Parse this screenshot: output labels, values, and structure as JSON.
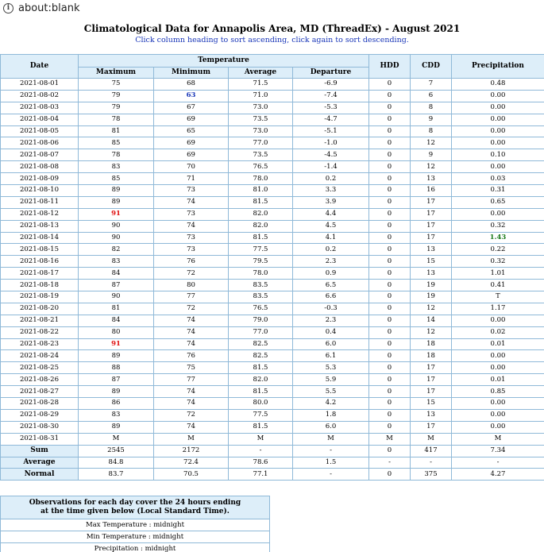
{
  "browser": {
    "url": "about:blank"
  },
  "page": {
    "title": "Climatological Data for Annapolis Area, MD (ThreadEx) - August 2021",
    "subtitle": "Click column heading to sort ascending, click again to sort descending."
  },
  "table": {
    "headers": {
      "date": "Date",
      "temperature": "Temperature",
      "maximum": "Maximum",
      "minimum": "Minimum",
      "average": "Average",
      "departure": "Departure",
      "hdd": "HDD",
      "cdd": "CDD",
      "precipitation": "Precipitation"
    },
    "rows": [
      {
        "date": "2021-08-01",
        "max": "75",
        "min": "68",
        "avg": "71.5",
        "dep": "-6.9",
        "hdd": "0",
        "cdd": "7",
        "precip": "0.48"
      },
      {
        "date": "2021-08-02",
        "max": "79",
        "min": "63",
        "avg": "71.0",
        "dep": "-7.4",
        "hdd": "0",
        "cdd": "6",
        "precip": "0.00"
      },
      {
        "date": "2021-08-03",
        "max": "79",
        "min": "67",
        "avg": "73.0",
        "dep": "-5.3",
        "hdd": "0",
        "cdd": "8",
        "precip": "0.00"
      },
      {
        "date": "2021-08-04",
        "max": "78",
        "min": "69",
        "avg": "73.5",
        "dep": "-4.7",
        "hdd": "0",
        "cdd": "9",
        "precip": "0.00"
      },
      {
        "date": "2021-08-05",
        "max": "81",
        "min": "65",
        "avg": "73.0",
        "dep": "-5.1",
        "hdd": "0",
        "cdd": "8",
        "precip": "0.00"
      },
      {
        "date": "2021-08-06",
        "max": "85",
        "min": "69",
        "avg": "77.0",
        "dep": "-1.0",
        "hdd": "0",
        "cdd": "12",
        "precip": "0.00"
      },
      {
        "date": "2021-08-07",
        "max": "78",
        "min": "69",
        "avg": "73.5",
        "dep": "-4.5",
        "hdd": "0",
        "cdd": "9",
        "precip": "0.10"
      },
      {
        "date": "2021-08-08",
        "max": "83",
        "min": "70",
        "avg": "76.5",
        "dep": "-1.4",
        "hdd": "0",
        "cdd": "12",
        "precip": "0.00"
      },
      {
        "date": "2021-08-09",
        "max": "85",
        "min": "71",
        "avg": "78.0",
        "dep": "0.2",
        "hdd": "0",
        "cdd": "13",
        "precip": "0.03"
      },
      {
        "date": "2021-08-10",
        "max": "89",
        "min": "73",
        "avg": "81.0",
        "dep": "3.3",
        "hdd": "0",
        "cdd": "16",
        "precip": "0.31"
      },
      {
        "date": "2021-08-11",
        "max": "89",
        "min": "74",
        "avg": "81.5",
        "dep": "3.9",
        "hdd": "0",
        "cdd": "17",
        "precip": "0.65"
      },
      {
        "date": "2021-08-12",
        "max": "91",
        "min": "73",
        "avg": "82.0",
        "dep": "4.4",
        "hdd": "0",
        "cdd": "17",
        "precip": "0.00"
      },
      {
        "date": "2021-08-13",
        "max": "90",
        "min": "74",
        "avg": "82.0",
        "dep": "4.5",
        "hdd": "0",
        "cdd": "17",
        "precip": "0.32"
      },
      {
        "date": "2021-08-14",
        "max": "90",
        "min": "73",
        "avg": "81.5",
        "dep": "4.1",
        "hdd": "0",
        "cdd": "17",
        "precip": "1.43"
      },
      {
        "date": "2021-08-15",
        "max": "82",
        "min": "73",
        "avg": "77.5",
        "dep": "0.2",
        "hdd": "0",
        "cdd": "13",
        "precip": "0.22"
      },
      {
        "date": "2021-08-16",
        "max": "83",
        "min": "76",
        "avg": "79.5",
        "dep": "2.3",
        "hdd": "0",
        "cdd": "15",
        "precip": "0.32"
      },
      {
        "date": "2021-08-17",
        "max": "84",
        "min": "72",
        "avg": "78.0",
        "dep": "0.9",
        "hdd": "0",
        "cdd": "13",
        "precip": "1.01"
      },
      {
        "date": "2021-08-18",
        "max": "87",
        "min": "80",
        "avg": "83.5",
        "dep": "6.5",
        "hdd": "0",
        "cdd": "19",
        "precip": "0.41"
      },
      {
        "date": "2021-08-19",
        "max": "90",
        "min": "77",
        "avg": "83.5",
        "dep": "6.6",
        "hdd": "0",
        "cdd": "19",
        "precip": "T"
      },
      {
        "date": "2021-08-20",
        "max": "81",
        "min": "72",
        "avg": "76.5",
        "dep": "-0.3",
        "hdd": "0",
        "cdd": "12",
        "precip": "1.17"
      },
      {
        "date": "2021-08-21",
        "max": "84",
        "min": "74",
        "avg": "79.0",
        "dep": "2.3",
        "hdd": "0",
        "cdd": "14",
        "precip": "0.00"
      },
      {
        "date": "2021-08-22",
        "max": "80",
        "min": "74",
        "avg": "77.0",
        "dep": "0.4",
        "hdd": "0",
        "cdd": "12",
        "precip": "0.02"
      },
      {
        "date": "2021-08-23",
        "max": "91",
        "min": "74",
        "avg": "82.5",
        "dep": "6.0",
        "hdd": "0",
        "cdd": "18",
        "precip": "0.01"
      },
      {
        "date": "2021-08-24",
        "max": "89",
        "min": "76",
        "avg": "82.5",
        "dep": "6.1",
        "hdd": "0",
        "cdd": "18",
        "precip": "0.00"
      },
      {
        "date": "2021-08-25",
        "max": "88",
        "min": "75",
        "avg": "81.5",
        "dep": "5.3",
        "hdd": "0",
        "cdd": "17",
        "precip": "0.00"
      },
      {
        "date": "2021-08-26",
        "max": "87",
        "min": "77",
        "avg": "82.0",
        "dep": "5.9",
        "hdd": "0",
        "cdd": "17",
        "precip": "0.01"
      },
      {
        "date": "2021-08-27",
        "max": "89",
        "min": "74",
        "avg": "81.5",
        "dep": "5.5",
        "hdd": "0",
        "cdd": "17",
        "precip": "0.85"
      },
      {
        "date": "2021-08-28",
        "max": "86",
        "min": "74",
        "avg": "80.0",
        "dep": "4.2",
        "hdd": "0",
        "cdd": "15",
        "precip": "0.00"
      },
      {
        "date": "2021-08-29",
        "max": "83",
        "min": "72",
        "avg": "77.5",
        "dep": "1.8",
        "hdd": "0",
        "cdd": "13",
        "precip": "0.00"
      },
      {
        "date": "2021-08-30",
        "max": "89",
        "min": "74",
        "avg": "81.5",
        "dep": "6.0",
        "hdd": "0",
        "cdd": "17",
        "precip": "0.00"
      },
      {
        "date": "2021-08-31",
        "max": "M",
        "min": "M",
        "avg": "M",
        "dep": "M",
        "hdd": "M",
        "cdd": "M",
        "precip": "M"
      }
    ],
    "summary": [
      {
        "label": "Sum",
        "max": "2545",
        "min": "2172",
        "avg": "-",
        "dep": "-",
        "hdd": "0",
        "cdd": "417",
        "precip": "7.34"
      },
      {
        "label": "Average",
        "max": "84.8",
        "min": "72.4",
        "avg": "78.6",
        "dep": "1.5",
        "hdd": "-",
        "cdd": "-",
        "precip": "-"
      },
      {
        "label": "Normal",
        "max": "83.7",
        "min": "70.5",
        "avg": "77.1",
        "dep": "-",
        "hdd": "0",
        "cdd": "375",
        "precip": "4.27"
      }
    ],
    "highlights": {
      "red_max": [
        "2021-08-12",
        "2021-08-23"
      ],
      "blue_min": [
        "2021-08-02"
      ],
      "green_precip": [
        "2021-08-14"
      ]
    },
    "colors": {
      "red": "#e01010",
      "blue": "#1a37b8",
      "green": "#1a7a1a",
      "header_bg": "#ddeef9",
      "border": "#8fb9d8"
    }
  },
  "observations": {
    "header": "Observations for each day cover the 24 hours ending at the time given below (Local Standard Time).",
    "header_line1": "Observations for each day cover the 24 hours ending",
    "header_line2": "at the time given below (Local Standard Time).",
    "items": [
      "Max Temperature : midnight",
      "Min Temperature : midnight",
      "Precipitation : midnight"
    ]
  }
}
